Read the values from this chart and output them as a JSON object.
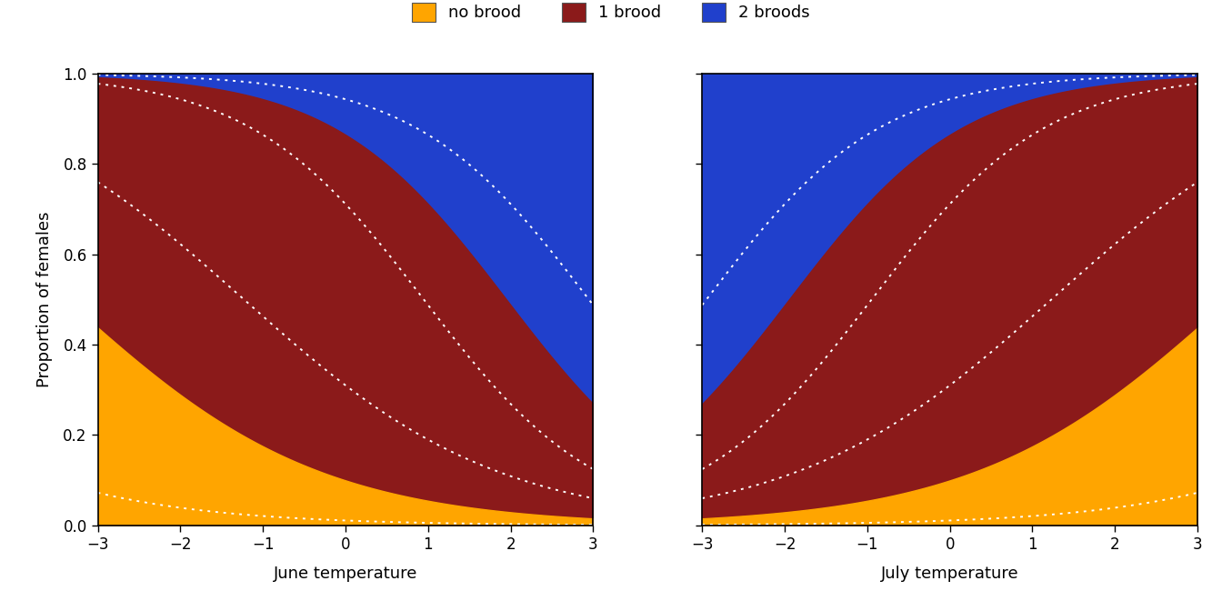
{
  "x_min": -3,
  "x_max": 3,
  "n_points": 200,
  "color_orange": "#FFA500",
  "color_darkred": "#8B1A1A",
  "color_blue": "#2040CC",
  "bg_color": "#FFFFFF",
  "xlabel_june": "June temperature",
  "xlabel_july": "July temperature",
  "ylabel": "Proportion of females",
  "legend_labels": [
    "no brood",
    "1 brood",
    "2 broods"
  ],
  "ylim": [
    0,
    1
  ],
  "xlim": [
    -3,
    3
  ],
  "xticks": [
    -3,
    -2,
    -1,
    0,
    1,
    2,
    3
  ],
  "yticks": [
    0.0,
    0.2,
    0.4,
    0.6,
    0.8,
    1.0
  ],
  "june_orange_mean_b0": -2.2,
  "june_orange_mean_b1": -0.65,
  "june_orange_lo_b0": -4.5,
  "june_orange_lo_b1": -0.65,
  "june_orange_hi_b0": -0.8,
  "june_orange_hi_b1": -0.65,
  "june_red_mean_b0": 1.85,
  "june_red_mean_b1": -0.95,
  "june_red_lo_b0": 0.9,
  "june_red_lo_b1": -0.95,
  "june_red_hi_b0": 2.8,
  "june_red_hi_b1": -0.95,
  "july_orange_mean_b0": -2.2,
  "july_orange_mean_b1": 0.65,
  "july_orange_lo_b0": -4.5,
  "july_orange_lo_b1": 0.65,
  "july_orange_hi_b0": -0.8,
  "july_orange_hi_b1": 0.65,
  "july_red_mean_b0": 1.85,
  "july_red_mean_b1": 0.95,
  "july_red_lo_b0": 0.9,
  "july_red_lo_b1": 0.95,
  "july_red_hi_b0": 2.8,
  "july_red_hi_b1": 0.95
}
